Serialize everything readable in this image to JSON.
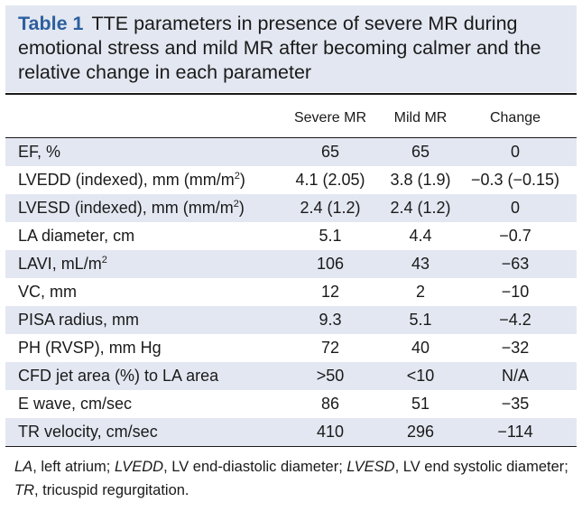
{
  "caption": {
    "label": "Table 1",
    "text": "TTE parameters in presence of severe MR during emotional stress and mild MR after becoming calmer and the relative change in each parameter"
  },
  "table": {
    "headers": [
      "",
      "Severe MR",
      "Mild MR",
      "Change"
    ],
    "rows": [
      {
        "param": "EF, %",
        "sup": "",
        "param_after": "",
        "severe": "65",
        "mild": "65",
        "change": "0"
      },
      {
        "param": "LVEDD (indexed), mm (mm/m",
        "sup": "2",
        "param_after": ")",
        "severe": "4.1 (2.05)",
        "mild": "3.8 (1.9)",
        "change": "−0.3 (−0.15)"
      },
      {
        "param": "LVESD (indexed), mm (mm/m",
        "sup": "2",
        "param_after": ")",
        "severe": "2.4 (1.2)",
        "mild": "2.4 (1.2)",
        "change": "0"
      },
      {
        "param": "LA diameter, cm",
        "sup": "",
        "param_after": "",
        "severe": "5.1",
        "mild": "4.4",
        "change": "−0.7"
      },
      {
        "param": "LAVI, mL/m",
        "sup": "2",
        "param_after": "",
        "severe": "106",
        "mild": "43",
        "change": "−63"
      },
      {
        "param": "VC, mm",
        "sup": "",
        "param_after": "",
        "severe": "12",
        "mild": "2",
        "change": "−10"
      },
      {
        "param": "PISA radius, mm",
        "sup": "",
        "param_after": "",
        "severe": "9.3",
        "mild": "5.1",
        "change": "−4.2"
      },
      {
        "param": "PH (RVSP), mm Hg",
        "sup": "",
        "param_after": "",
        "severe": "72",
        "mild": "40",
        "change": "−32"
      },
      {
        "param": "CFD jet area (%) to LA area",
        "sup": "",
        "param_after": "",
        "severe": ">50",
        "mild": "<10",
        "change": "N/A"
      },
      {
        "param": "E wave, cm/sec",
        "sup": "",
        "param_after": "",
        "severe": "86",
        "mild": "51",
        "change": "−35"
      },
      {
        "param": "TR velocity, cm/sec",
        "sup": "",
        "param_after": "",
        "severe": "410",
        "mild": "296",
        "change": "−114"
      }
    ]
  },
  "footnote": {
    "items": [
      {
        "abbr": "LA",
        "def": ", left atrium; "
      },
      {
        "abbr": "LVEDD",
        "def": ", LV end-diastolic diameter; "
      },
      {
        "abbr": "LVESD",
        "def": ", LV end systolic diameter; "
      },
      {
        "abbr": "TR",
        "def": ", tricuspid regurgitation."
      }
    ]
  },
  "colors": {
    "accent": "#2d5f9e",
    "shade": "#e3e7f1"
  }
}
